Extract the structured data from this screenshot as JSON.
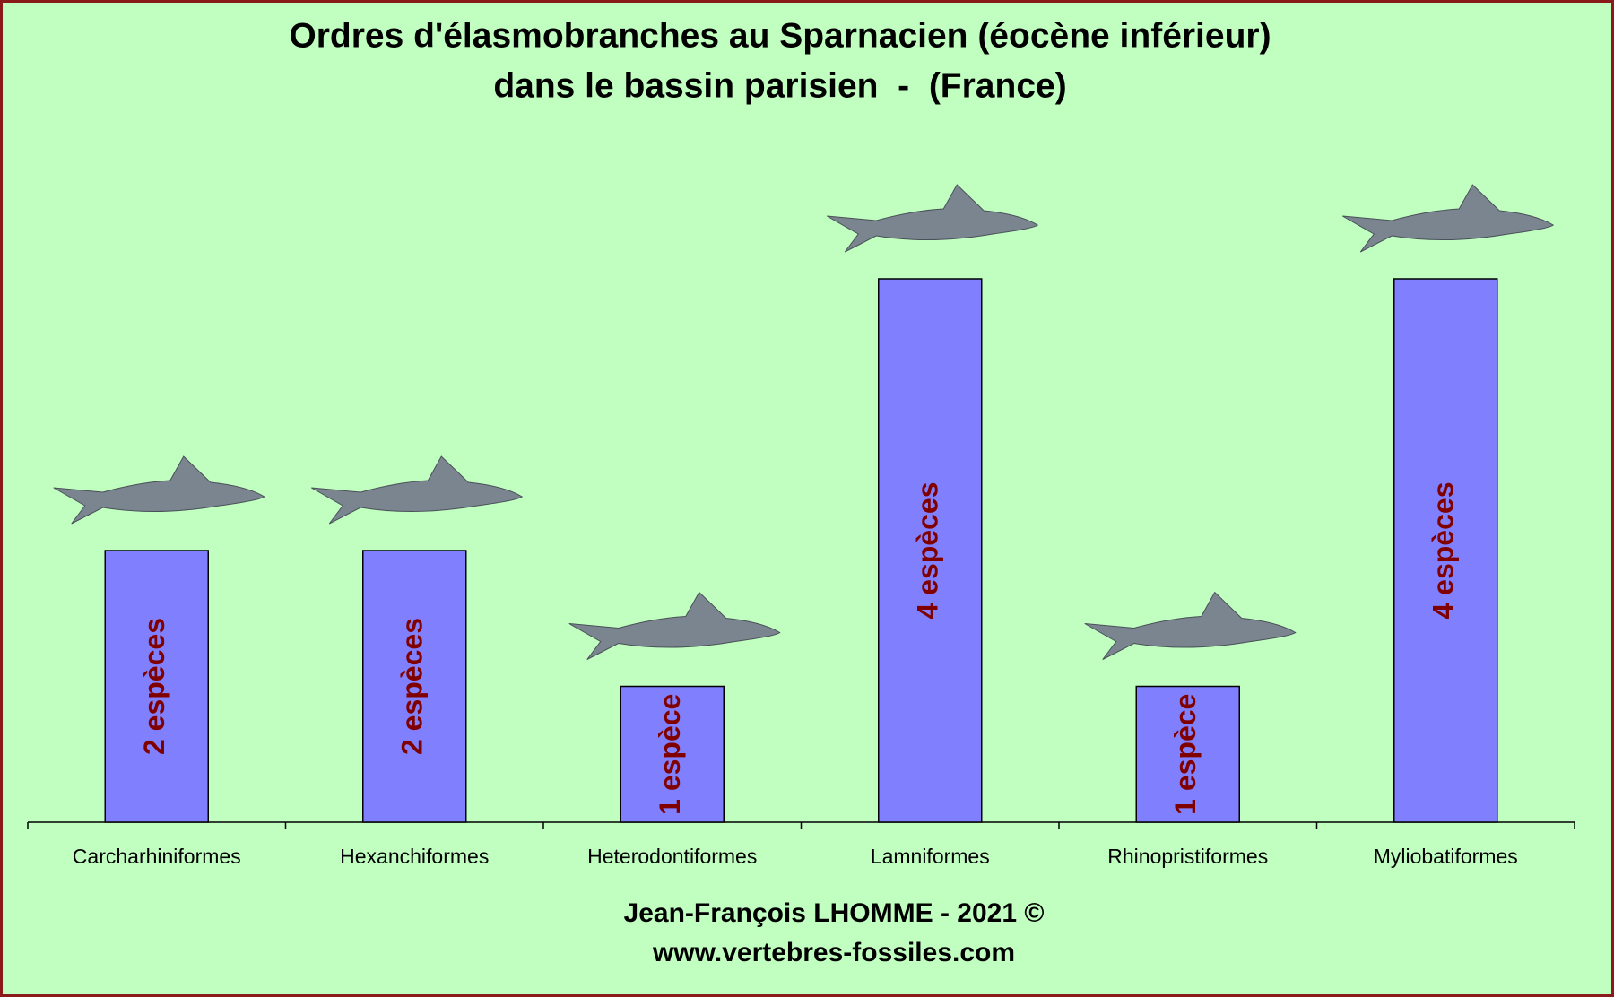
{
  "chart_data": {
    "type": "bar",
    "title": "Ordres d'élasmobranches au Sparnacien (éocène inférieur)",
    "subtitle": "dans le bassin parisien  -  (France)",
    "categories": [
      "Carcharhiniformes",
      "Hexanchiformes",
      "Heterodontiformes",
      "Lamniformes",
      "Rhinopristiformes",
      "Myliobatiformes"
    ],
    "values": [
      2,
      2,
      1,
      4,
      1,
      4
    ],
    "value_labels": [
      "2 espèces",
      "2 espèces",
      "1 espèce",
      "4 espèces",
      "1 espèce",
      "4 espèces"
    ],
    "color": "#8080ff",
    "ylim": [
      0,
      6
    ],
    "annotations": [
      "Jean-François LHOMME - 2021 ©",
      "www.vertebres-fossiles.com"
    ]
  }
}
